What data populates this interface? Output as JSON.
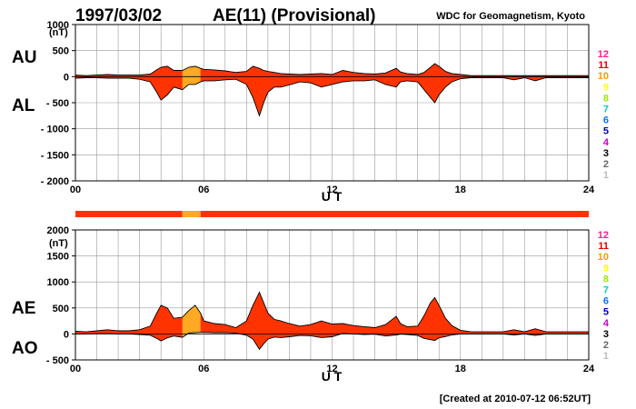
{
  "header": {
    "date": "1997/03/02",
    "index_title": "AE(11) (Provisional)",
    "source": "WDC for Geomagnetism, Kyoto",
    "created": "[Created at 2010-07-12 06:52UT]"
  },
  "colors": {
    "fill_main": "#ff3300",
    "fill_highlight": "#ffaa22",
    "grid": "#999999",
    "axis": "#000000"
  },
  "legend": {
    "items": [
      {
        "label": "12",
        "color": "#ff1a8c"
      },
      {
        "label": "11",
        "color": "#e00000"
      },
      {
        "label": "10",
        "color": "#ff9900"
      },
      {
        "label": "9",
        "color": "#ffff00"
      },
      {
        "label": "8",
        "color": "#99ee00"
      },
      {
        "label": "7",
        "color": "#00cccc"
      },
      {
        "label": "6",
        "color": "#0077ff"
      },
      {
        "label": "5",
        "color": "#0000cc"
      },
      {
        "label": "4",
        "color": "#cc00cc"
      },
      {
        "label": "3",
        "color": "#000000"
      },
      {
        "label": "2",
        "color": "#666666"
      },
      {
        "label": "1",
        "color": "#bbbbbb"
      }
    ]
  },
  "status_bar": {
    "segments": [
      {
        "from": 0,
        "to": 5.0,
        "color": "#ff3300"
      },
      {
        "from": 5.0,
        "to": 5.85,
        "color": "#ffaa22"
      },
      {
        "from": 5.85,
        "to": 24,
        "color": "#ff3300"
      }
    ]
  },
  "chart_data": [
    {
      "type": "area",
      "panel": "AU/AL",
      "unit": "(nT)",
      "left_labels": [
        "AU",
        "AL"
      ],
      "xlabel": "U T",
      "xlim": [
        0,
        24
      ],
      "ylim": [
        -2000,
        1000
      ],
      "yticks": [
        "1000",
        "500",
        "0",
        "- 500",
        "- 1000",
        "- 1500",
        "- 2000"
      ],
      "yticks_values": [
        1000,
        500,
        0,
        -500,
        -1000,
        -1500,
        -2000
      ],
      "xticks": [
        "00",
        "06",
        "12",
        "18",
        "24"
      ],
      "xticks_values": [
        0,
        6,
        12,
        18,
        24
      ],
      "grid": true,
      "highlight": {
        "from": 5.0,
        "to": 5.85
      },
      "series": [
        {
          "name": "AU",
          "x": [
            0,
            0.5,
            1,
            1.5,
            2,
            2.5,
            3,
            3.5,
            3.8,
            4,
            4.3,
            4.6,
            5,
            5.3,
            5.6,
            5.85,
            6,
            6.5,
            7,
            7.5,
            8,
            8.3,
            8.6,
            8.8,
            9,
            9.3,
            9.6,
            10,
            10.5,
            11,
            11.5,
            12,
            12.5,
            13,
            13.5,
            14,
            14.5,
            15,
            15.2,
            15.5,
            16,
            16.3,
            16.6,
            16.8,
            17,
            17.3,
            17.6,
            18,
            18.5,
            19,
            19.5,
            20,
            20.5,
            21,
            21.5,
            22,
            22.5,
            23,
            23.5,
            24
          ],
          "y": [
            30,
            20,
            30,
            40,
            30,
            30,
            30,
            50,
            130,
            180,
            200,
            120,
            120,
            180,
            200,
            160,
            140,
            130,
            110,
            80,
            100,
            200,
            160,
            120,
            100,
            80,
            60,
            50,
            40,
            50,
            60,
            40,
            120,
            80,
            60,
            50,
            70,
            160,
            90,
            60,
            40,
            80,
            180,
            250,
            200,
            100,
            60,
            40,
            20,
            20,
            20,
            20,
            20,
            20,
            20,
            20,
            20,
            20,
            20,
            20
          ]
        },
        {
          "name": "AL",
          "x": [
            0,
            0.5,
            1,
            1.5,
            2,
            2.5,
            3,
            3.5,
            3.8,
            4,
            4.3,
            4.6,
            5,
            5.3,
            5.6,
            5.85,
            6,
            6.5,
            7,
            7.5,
            8,
            8.3,
            8.6,
            8.8,
            9,
            9.3,
            9.6,
            10,
            10.5,
            11,
            11.5,
            12,
            12.5,
            13,
            13.5,
            14,
            14.5,
            15,
            15.2,
            15.5,
            16,
            16.3,
            16.6,
            16.8,
            17,
            17.3,
            17.6,
            18,
            18.5,
            19,
            19.5,
            20,
            20.5,
            21,
            21.5,
            22,
            22.5,
            23,
            23.5,
            24
          ],
          "y": [
            -30,
            -20,
            -20,
            -30,
            -30,
            -30,
            -50,
            -100,
            -300,
            -450,
            -350,
            -200,
            -250,
            -150,
            -150,
            -100,
            -80,
            -80,
            -60,
            -50,
            -150,
            -400,
            -750,
            -500,
            -300,
            -200,
            -200,
            -160,
            -100,
            -120,
            -200,
            -150,
            -100,
            -80,
            -80,
            -60,
            -150,
            -200,
            -100,
            -80,
            -100,
            -250,
            -400,
            -500,
            -350,
            -200,
            -100,
            -40,
            -20,
            -20,
            -20,
            -20,
            -60,
            -20,
            -80,
            -20,
            -20,
            -20,
            -20,
            -20
          ]
        }
      ]
    },
    {
      "type": "area",
      "panel": "AE/AO",
      "unit": "(nT)",
      "left_labels": [
        "AE",
        "AO"
      ],
      "xlabel": "U T",
      "xlim": [
        0,
        24
      ],
      "ylim": [
        -500,
        2000
      ],
      "yticks": [
        "2000",
        "1500",
        "1000",
        "500",
        "0",
        "- 500"
      ],
      "yticks_values": [
        2000,
        1500,
        1000,
        500,
        0,
        -500
      ],
      "xticks": [
        "00",
        "06",
        "12",
        "18",
        "24"
      ],
      "xticks_values": [
        0,
        6,
        12,
        18,
        24
      ],
      "grid": true,
      "highlight": {
        "from": 5.0,
        "to": 5.85
      },
      "series": [
        {
          "name": "AE",
          "x": [
            0,
            0.5,
            1,
            1.5,
            2,
            2.5,
            3,
            3.5,
            3.8,
            4,
            4.3,
            4.6,
            5,
            5.3,
            5.6,
            5.85,
            6,
            6.5,
            7,
            7.5,
            8,
            8.3,
            8.6,
            8.8,
            9,
            9.3,
            9.6,
            10,
            10.5,
            11,
            11.5,
            12,
            12.5,
            13,
            13.5,
            14,
            14.5,
            15,
            15.2,
            15.5,
            16,
            16.3,
            16.6,
            16.8,
            17,
            17.3,
            17.6,
            18,
            18.5,
            19,
            19.5,
            20,
            20.5,
            21,
            21.5,
            22,
            22.5,
            23,
            23.5,
            24
          ],
          "y": [
            50,
            40,
            60,
            80,
            60,
            60,
            80,
            150,
            400,
            550,
            500,
            300,
            320,
            450,
            550,
            400,
            250,
            200,
            180,
            120,
            250,
            550,
            800,
            600,
            400,
            280,
            250,
            200,
            150,
            180,
            250,
            190,
            200,
            160,
            140,
            120,
            180,
            340,
            200,
            140,
            150,
            350,
            600,
            700,
            550,
            300,
            160,
            70,
            40,
            40,
            40,
            40,
            80,
            40,
            100,
            40,
            40,
            40,
            40,
            40
          ]
        },
        {
          "name": "AO",
          "x": [
            0,
            0.5,
            1,
            1.5,
            2,
            2.5,
            3,
            3.5,
            3.8,
            4,
            4.3,
            4.6,
            5,
            5.3,
            5.6,
            5.85,
            6,
            6.5,
            7,
            7.5,
            8,
            8.3,
            8.6,
            8.8,
            9,
            9.3,
            9.6,
            10,
            10.5,
            11,
            11.5,
            12,
            12.5,
            13,
            13.5,
            14,
            14.5,
            15,
            15.2,
            15.5,
            16,
            16.3,
            16.6,
            16.8,
            17,
            17.3,
            17.6,
            18,
            18.5,
            19,
            19.5,
            20,
            20.5,
            21,
            21.5,
            22,
            22.5,
            23,
            23.5,
            24
          ],
          "y": [
            0,
            0,
            5,
            5,
            0,
            0,
            -10,
            -25,
            -85,
            -135,
            -75,
            -40,
            -65,
            15,
            25,
            30,
            30,
            25,
            25,
            15,
            -25,
            -100,
            -295,
            -190,
            -100,
            -60,
            -70,
            -55,
            -30,
            -35,
            -70,
            -55,
            10,
            0,
            -10,
            -5,
            -40,
            -20,
            -5,
            -10,
            -30,
            -85,
            -110,
            -125,
            -75,
            -50,
            -20,
            0,
            0,
            0,
            0,
            0,
            -20,
            0,
            -30,
            0,
            0,
            0,
            0,
            0
          ]
        }
      ]
    }
  ]
}
